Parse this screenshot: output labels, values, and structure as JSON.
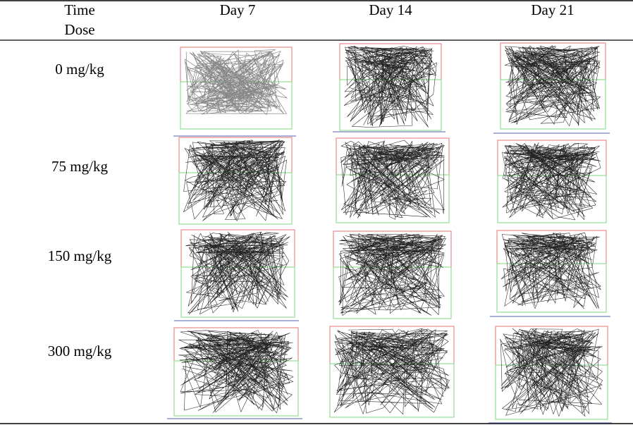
{
  "table": {
    "corner_top": "Time",
    "corner_bottom": "Dose",
    "columns": [
      "Day 7",
      "Day 14",
      "Day 21"
    ],
    "rows": [
      "0 mg/kg",
      "75 mg/kg",
      "150 mg/kg",
      "300 mg/kg"
    ]
  }
}
